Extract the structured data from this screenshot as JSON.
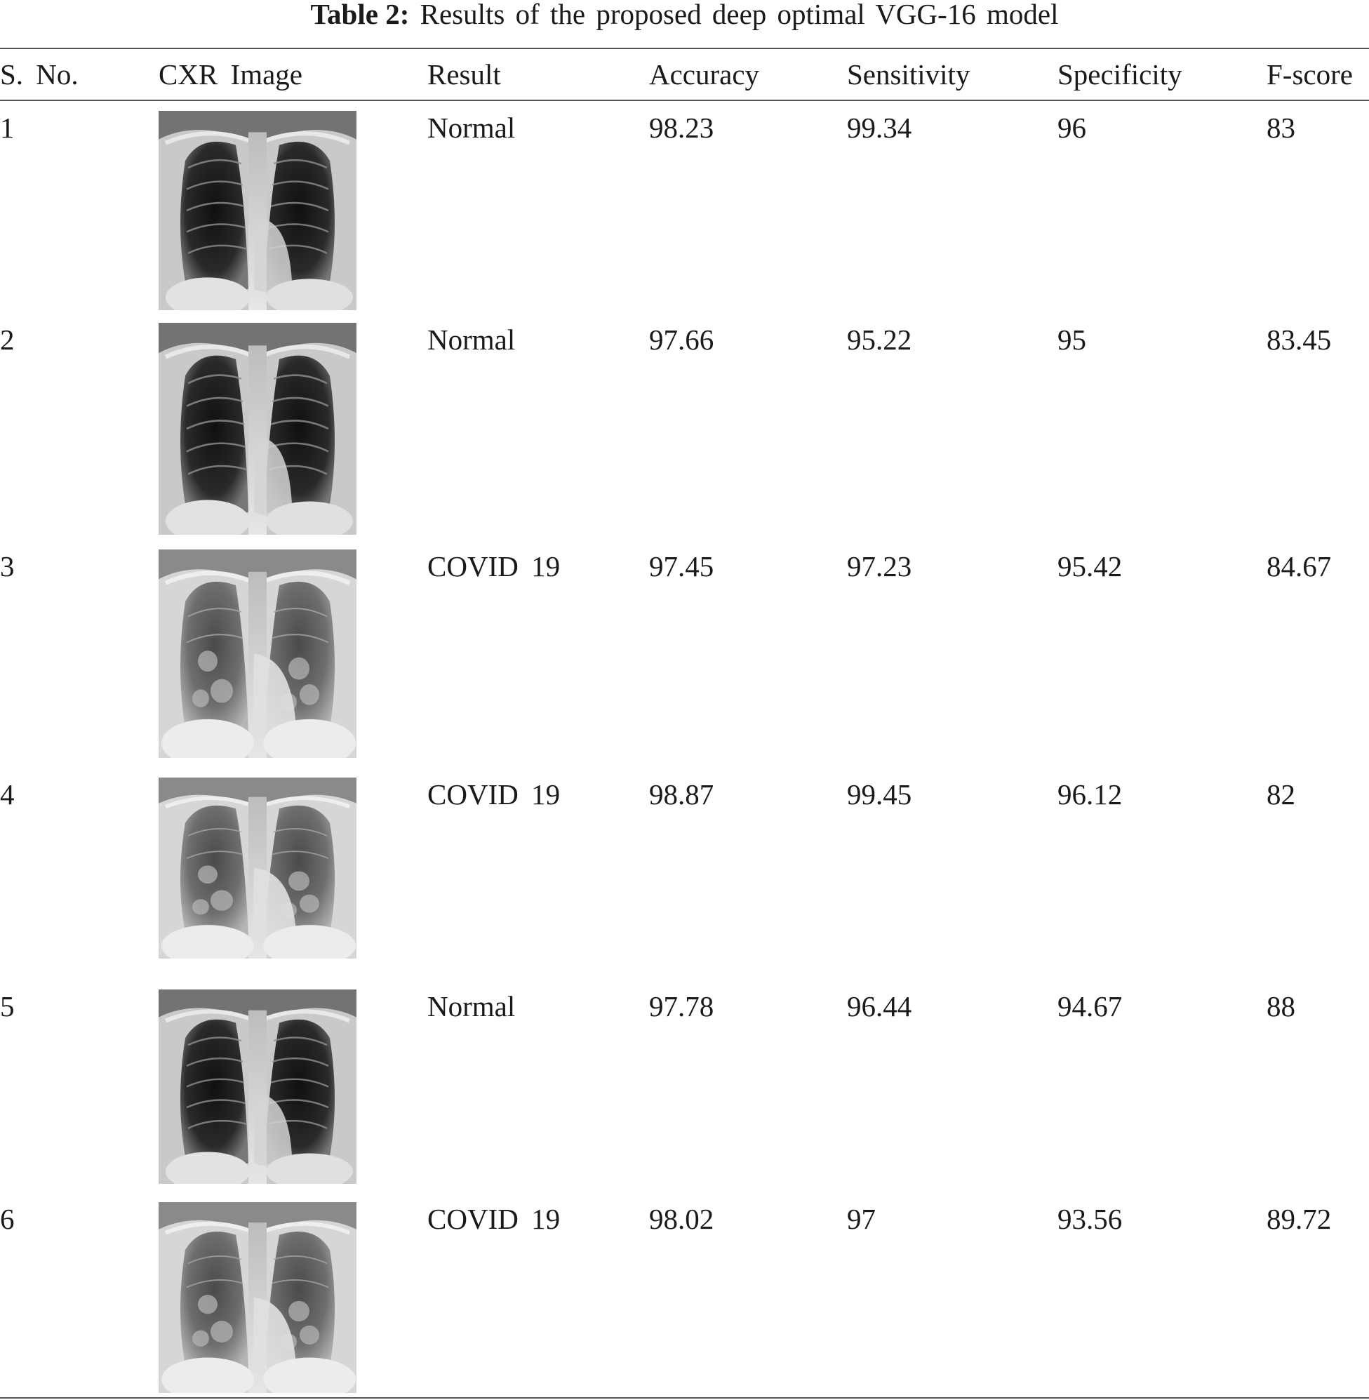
{
  "caption": {
    "label": "Table 2:",
    "text": "Results of the proposed deep optimal VGG-16 model"
  },
  "columns": [
    "S. No.",
    "CXR Image",
    "Result",
    "Accuracy",
    "Sensitivity",
    "Specificity",
    "F-score"
  ],
  "rows": [
    {
      "sno": "1",
      "image": "chest-xray-1",
      "result": "Normal",
      "accuracy": "98.23",
      "sensitivity": "99.34",
      "specificity": "96",
      "fscore": "83"
    },
    {
      "sno": "2",
      "image": "chest-xray-2",
      "result": "Normal",
      "accuracy": "97.66",
      "sensitivity": "95.22",
      "specificity": "95",
      "fscore": "83.45"
    },
    {
      "sno": "3",
      "image": "chest-xray-3",
      "result": "COVID 19",
      "accuracy": "97.45",
      "sensitivity": "97.23",
      "specificity": "95.42",
      "fscore": "84.67"
    },
    {
      "sno": "4",
      "image": "chest-xray-4",
      "result": "COVID 19",
      "accuracy": "98.87",
      "sensitivity": "99.45",
      "specificity": "96.12",
      "fscore": "82"
    },
    {
      "sno": "5",
      "image": "chest-xray-5",
      "result": "Normal",
      "accuracy": "97.78",
      "sensitivity": "96.44",
      "specificity": "94.67",
      "fscore": "88"
    },
    {
      "sno": "6",
      "image": "chest-xray-6",
      "result": "COVID 19",
      "accuracy": "98.02",
      "sensitivity": "97",
      "specificity": "93.56",
      "fscore": "89.72"
    }
  ]
}
